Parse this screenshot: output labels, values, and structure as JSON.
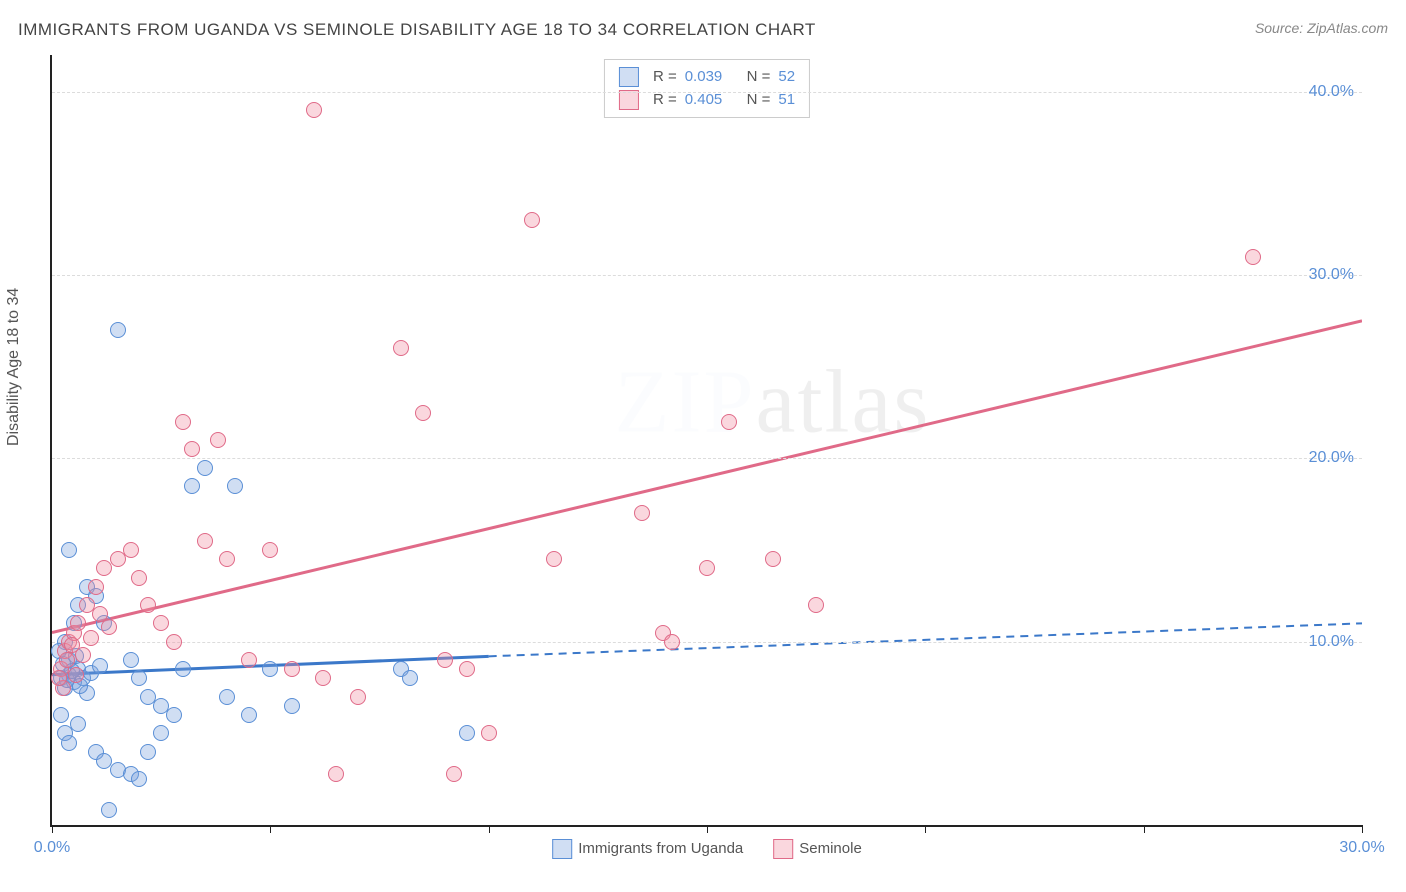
{
  "title": "IMMIGRANTS FROM UGANDA VS SEMINOLE DISABILITY AGE 18 TO 34 CORRELATION CHART",
  "source": "Source: ZipAtlas.com",
  "ylabel": "Disability Age 18 to 34",
  "watermark_a": "ZIP",
  "watermark_b": "atlas",
  "chart": {
    "type": "scatter",
    "background_color": "#ffffff",
    "grid_color": "#dcdcdc",
    "xlim": [
      0,
      30
    ],
    "ylim": [
      0,
      42
    ],
    "xtick_positions": [
      0,
      5,
      10,
      15,
      20,
      25,
      30
    ],
    "xtick_labels_shown": {
      "0": "0.0%",
      "30": "30.0%"
    },
    "ytick_positions": [
      10,
      20,
      30,
      40
    ],
    "ytick_labels": {
      "10": "10.0%",
      "20": "20.0%",
      "30": "30.0%",
      "40": "40.0%"
    },
    "series": [
      {
        "name": "Immigrants from Uganda",
        "label": "Immigrants from Uganda",
        "fill": "rgba(120,160,220,0.35)",
        "stroke": "#5a8fd6",
        "marker_size": 16,
        "r": "0.039",
        "n": "52",
        "trend": {
          "x1": 0,
          "y1": 8.2,
          "x2": 10,
          "y2": 9.2,
          "x2_ext": 30,
          "y2_ext": 11.0,
          "color": "#3b78c9",
          "width": 3,
          "dash_after": 10
        },
        "points": [
          [
            0.2,
            8
          ],
          [
            0.3,
            7.5
          ],
          [
            0.4,
            8.2
          ],
          [
            0.5,
            7.8
          ],
          [
            0.6,
            8.5
          ],
          [
            0.4,
            9
          ],
          [
            0.7,
            8
          ],
          [
            0.8,
            7.2
          ],
          [
            0.3,
            10
          ],
          [
            0.5,
            11
          ],
          [
            0.6,
            12
          ],
          [
            0.8,
            13
          ],
          [
            1.0,
            12.5
          ],
          [
            1.2,
            11
          ],
          [
            0.4,
            15
          ],
          [
            1.5,
            27
          ],
          [
            1.8,
            9
          ],
          [
            2.0,
            8
          ],
          [
            2.2,
            7
          ],
          [
            2.5,
            6.5
          ],
          [
            1.0,
            4
          ],
          [
            1.2,
            3.5
          ],
          [
            1.5,
            3
          ],
          [
            1.8,
            2.8
          ],
          [
            2.0,
            2.5
          ],
          [
            2.2,
            4
          ],
          [
            2.5,
            5
          ],
          [
            2.8,
            6
          ],
          [
            3.0,
            8.5
          ],
          [
            3.2,
            18.5
          ],
          [
            3.5,
            19.5
          ],
          [
            4.0,
            7
          ],
          [
            4.2,
            18.5
          ],
          [
            4.5,
            6
          ],
          [
            5.0,
            8.5
          ],
          [
            5.5,
            6.5
          ],
          [
            1.3,
            0.8
          ],
          [
            8.0,
            8.5
          ],
          [
            8.2,
            8
          ],
          [
            9.5,
            5
          ],
          [
            0.2,
            6
          ],
          [
            0.3,
            5
          ],
          [
            0.4,
            4.5
          ],
          [
            0.6,
            5.5
          ],
          [
            0.25,
            8.8
          ],
          [
            0.35,
            7.9
          ],
          [
            0.45,
            8.4
          ],
          [
            0.55,
            9.2
          ],
          [
            0.65,
            7.6
          ],
          [
            0.9,
            8.3
          ],
          [
            1.1,
            8.7
          ],
          [
            0.15,
            9.5
          ]
        ]
      },
      {
        "name": "Seminole",
        "label": "Seminole",
        "fill": "rgba(240,140,160,0.35)",
        "stroke": "#e06a88",
        "marker_size": 16,
        "r": "0.405",
        "n": "51",
        "trend": {
          "x1": 0,
          "y1": 10.5,
          "x2": 30,
          "y2": 27.5,
          "color": "#e06a88",
          "width": 3
        },
        "points": [
          [
            0.3,
            9.5
          ],
          [
            0.4,
            10
          ],
          [
            0.5,
            10.5
          ],
          [
            0.6,
            11
          ],
          [
            0.8,
            12
          ],
          [
            1.0,
            13
          ],
          [
            1.2,
            14
          ],
          [
            1.5,
            14.5
          ],
          [
            1.8,
            15
          ],
          [
            2.0,
            13.5
          ],
          [
            2.2,
            12
          ],
          [
            2.5,
            11
          ],
          [
            2.8,
            10
          ],
          [
            3.0,
            22
          ],
          [
            3.2,
            20.5
          ],
          [
            3.5,
            15.5
          ],
          [
            4.0,
            14.5
          ],
          [
            4.5,
            9
          ],
          [
            5.0,
            15
          ],
          [
            5.5,
            8.5
          ],
          [
            6.0,
            39
          ],
          [
            6.2,
            8
          ],
          [
            6.5,
            2.8
          ],
          [
            7.0,
            7
          ],
          [
            8.0,
            26
          ],
          [
            8.5,
            22.5
          ],
          [
            9.0,
            9
          ],
          [
            9.2,
            2.8
          ],
          [
            9.5,
            8.5
          ],
          [
            10.0,
            5
          ],
          [
            11.0,
            33
          ],
          [
            11.5,
            14.5
          ],
          [
            13.5,
            17
          ],
          [
            14.0,
            10.5
          ],
          [
            14.2,
            10
          ],
          [
            15.0,
            14
          ],
          [
            15.5,
            22
          ],
          [
            16.5,
            14.5
          ],
          [
            17.5,
            12
          ],
          [
            27.5,
            31
          ],
          [
            0.2,
            8.5
          ],
          [
            0.35,
            9
          ],
          [
            0.45,
            9.8
          ],
          [
            0.55,
            8.2
          ],
          [
            0.7,
            9.3
          ],
          [
            0.9,
            10.2
          ],
          [
            1.1,
            11.5
          ],
          [
            1.3,
            10.8
          ],
          [
            0.25,
            7.5
          ],
          [
            0.15,
            8
          ],
          [
            3.8,
            21
          ]
        ]
      }
    ]
  },
  "legend_box": {
    "r_label": "R =",
    "n_label": "N ="
  }
}
